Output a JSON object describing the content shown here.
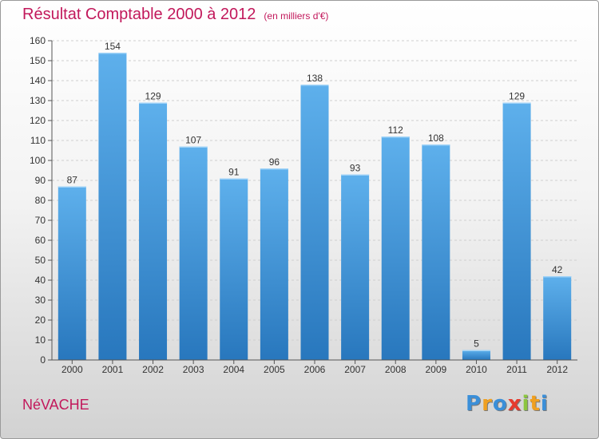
{
  "chart_data": {
    "type": "bar",
    "title": "Résultat Comptable 2000 à 2012",
    "subtitle": "(en milliers d'€)",
    "categories": [
      "2000",
      "2001",
      "2002",
      "2003",
      "2004",
      "2005",
      "2006",
      "2007",
      "2008",
      "2009",
      "2010",
      "2011",
      "2012"
    ],
    "values": [
      87,
      154,
      129,
      107,
      91,
      96,
      138,
      93,
      112,
      108,
      5,
      129,
      42
    ],
    "ylim": [
      0,
      160
    ],
    "yticks": [
      0,
      10,
      20,
      30,
      40,
      50,
      60,
      70,
      80,
      90,
      100,
      110,
      120,
      130,
      140,
      150,
      160
    ],
    "xlabel": "",
    "ylabel": "",
    "grid": true
  },
  "commune": "NéVACHE",
  "logo": {
    "letters": [
      "P",
      "r",
      "o",
      "x",
      "i",
      "t",
      "i"
    ],
    "colors": [
      "#3a8fd9",
      "#f0a020",
      "#3a8fd9",
      "#e63b2e",
      "#8cc63f",
      "#f0a020",
      "#3a8fd9"
    ]
  },
  "colors": {
    "title": "#c2185b",
    "bar_light": "#5eb0ec",
    "bar_dark": "#2877bd",
    "grid": "#cfcfcf"
  }
}
